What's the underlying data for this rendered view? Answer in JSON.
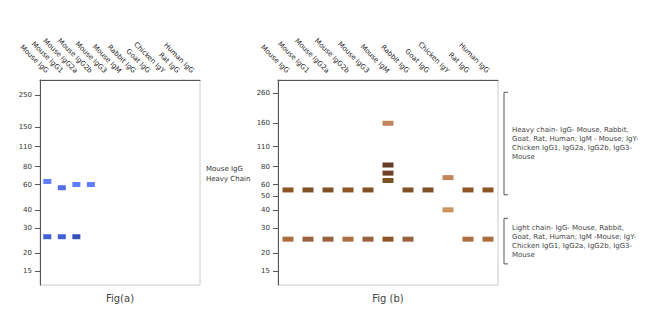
{
  "chart_data": [
    {
      "type": "scatter",
      "marker": "band",
      "title": "Fig(a)",
      "annotations": [
        "Mouse IgG\nHeavy Chain"
      ],
      "categories": [
        "Mouse IgG",
        "Mouse IgG1",
        "Mouse IgG2a",
        "Mouse IgG2b",
        "Mouse IgG3",
        "Mouse IgM",
        "Rabbit IgG",
        "Goat IgG",
        "Chicken IgY",
        "Rat IgG",
        "Human IgG"
      ],
      "log": "y",
      "ylim": [
        12,
        320
      ],
      "yticks": [
        250,
        150,
        110,
        80,
        60,
        40,
        30,
        20,
        15
      ],
      "grid": false,
      "series": [
        {
          "x": [
            "Mouse IgG",
            "Mouse IgG1",
            "Mouse IgG2a",
            "Mouse IgG2b"
          ],
          "values": [
            63,
            57,
            60,
            60
          ],
          "colors": [
            "#4466ff",
            "#3355dd",
            "#4466ff",
            "#4466ff"
          ]
        },
        {
          "x": [
            "Mouse IgG",
            "Mouse IgG1",
            "Mouse IgG2a"
          ],
          "values": [
            26,
            26,
            26
          ],
          "colors": [
            "#2244cc",
            "#2244cc",
            "#1133aa"
          ]
        }
      ]
    },
    {
      "type": "scatter",
      "marker": "band",
      "title": "Fig (b)",
      "annotations": [
        "Heavy chain- IgG- Mouse, Rabbit,\nGoat, Rat, Human; IgM - Mouse; IgY-\nChicken IgG1, IgG2a, IgG2b, IgG3-\nMouse",
        "Light chain- IgG- Mouse, Rabbit,\nGoat, Rat, Human; IgM -Mouse; IgY-\nChicken IgG1, IgG2a, IgG2b, IgG3-\nMouse"
      ],
      "categories": [
        "Mouse IgG",
        "Mouse IgG1",
        "Mouse IgG2a",
        "Mouse IgG2b",
        "Mouse IgG3",
        "Mouse IgM",
        "Rabbit IgG",
        "Goat IgG",
        "Chicken IgY",
        "Rat IgG",
        "Human IgG"
      ],
      "log": "y",
      "ylim": [
        12,
        320
      ],
      "yticks": [
        260,
        160,
        110,
        80,
        60,
        50,
        40,
        30,
        20,
        15
      ],
      "grid": false,
      "series": [
        {
          "x": [
            "Mouse IgG",
            "Mouse IgG1",
            "Mouse IgG2a",
            "Mouse IgG2b",
            "Mouse IgG3",
            "Mouse IgM",
            "Mouse IgM",
            "Mouse IgM",
            "Mouse IgM",
            "Rabbit IgG",
            "Goat IgG",
            "Chicken IgY",
            "Chicken IgY",
            "Rat IgG",
            "Human IgG"
          ],
          "values": [
            55,
            55,
            55,
            55,
            55,
            160,
            82,
            72,
            64,
            55,
            55,
            67,
            40,
            55,
            55
          ],
          "colors": [
            "#7a3800",
            "#6b3200",
            "#6b3200",
            "#7a3800",
            "#6b3200",
            "#b87040",
            "#4a1800",
            "#5a2000",
            "#6b3200",
            "#6b3200",
            "#6b3200",
            "#b87040",
            "#c08040",
            "#7a3800",
            "#7a3800"
          ]
        },
        {
          "x": [
            "Mouse IgG",
            "Mouse IgG1",
            "Mouse IgG2a",
            "Mouse IgG2b",
            "Mouse IgG3",
            "Mouse IgM",
            "Rabbit IgG",
            "Rat IgG",
            "Human IgG"
          ],
          "values": [
            25,
            25,
            25,
            25,
            25,
            25,
            25,
            25,
            25
          ],
          "colors": [
            "#9b5520",
            "#8b4820",
            "#8b4820",
            "#9b5520",
            "#8b4820",
            "#7a3800",
            "#8b4820",
            "#9b5520",
            "#9b5520"
          ]
        }
      ]
    }
  ]
}
